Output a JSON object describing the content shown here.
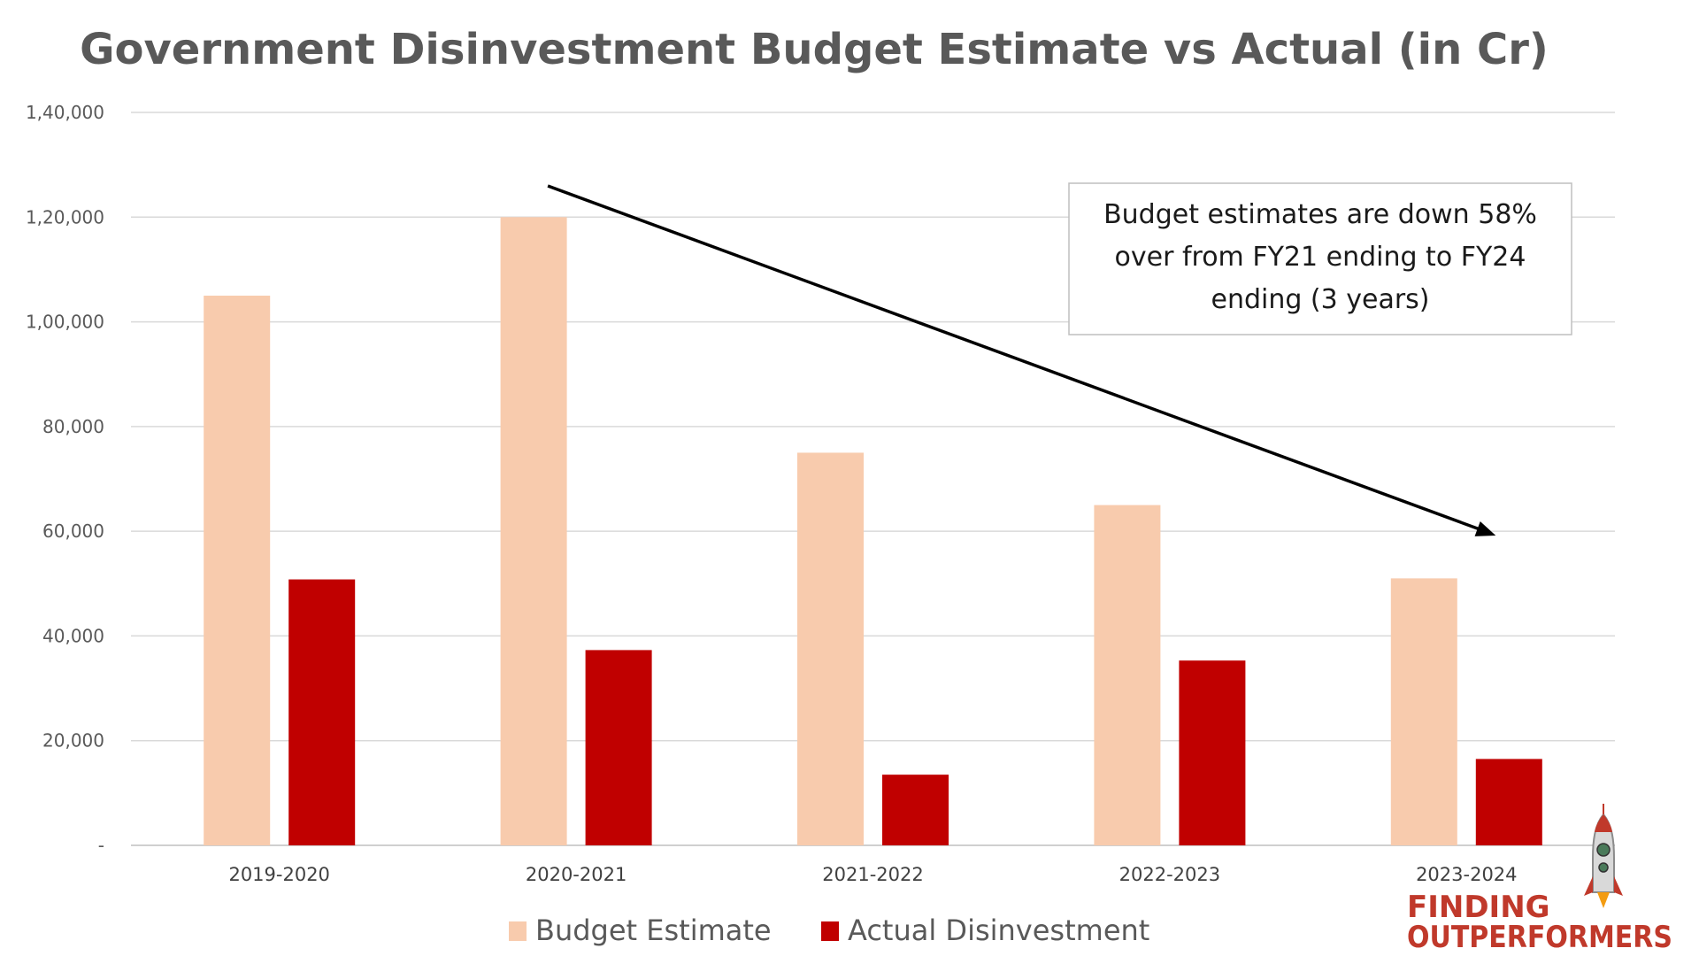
{
  "chart_data": {
    "type": "bar",
    "title": "Government Disinvestment Budget Estimate vs Actual (in Cr)",
    "categories": [
      "2019-2020",
      "2020-2021",
      "2021-2022",
      "2022-2023",
      "2023-2024"
    ],
    "series": [
      {
        "name": "Budget Estimate",
        "values": [
          105000,
          120000,
          75000,
          65000,
          51000
        ],
        "color": "#F8CBAD"
      },
      {
        "name": "Actual Disinvestment",
        "values": [
          50800,
          37300,
          13500,
          35300,
          16500
        ],
        "color": "#C00000"
      }
    ],
    "ylim": [
      0,
      140000
    ],
    "yticks": [
      0,
      20000,
      40000,
      60000,
      80000,
      100000,
      120000,
      140000
    ],
    "ytick_labels": [
      "-",
      "20,000",
      "40,000",
      "60,000",
      "80,000",
      "1,00,000",
      "1,20,000",
      "1,40,000"
    ],
    "grid": true,
    "legend_position": "bottom",
    "annotation": {
      "lines": [
        "Budget estimates are down 58%",
        "over from FY21 ending to FY24",
        "ending  (3 years)"
      ]
    },
    "trend_arrow": {
      "from_category": "2020-2021",
      "to_category": "2023-2024",
      "color": "#000000"
    }
  },
  "logo": {
    "line1": "FINDING",
    "line2": "OUTPERFORMERS"
  }
}
